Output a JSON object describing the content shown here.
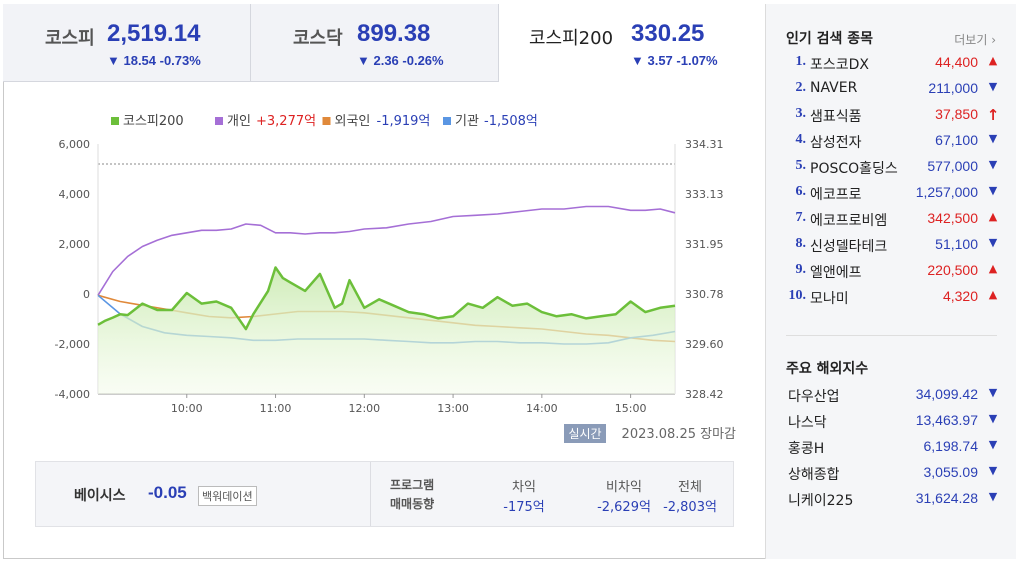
{
  "tabs": [
    {
      "name": "코스피",
      "value": "2,519.14",
      "change": "▼ 18.54 -0.73%"
    },
    {
      "name": "코스닥",
      "value": "899.38",
      "change": "▼ 2.36 -0.26%"
    },
    {
      "name": "코스피200",
      "value": "330.25",
      "change": "▼ 3.57 -1.07%"
    }
  ],
  "legend": [
    {
      "label": "코스피200",
      "amount": "",
      "color": "#6cbf3a"
    },
    {
      "label": "개인",
      "amount": "+3,277억",
      "color": "#a56fd6"
    },
    {
      "label": "외국인",
      "amount": "-1,919억",
      "color": "#e0893a"
    },
    {
      "label": "기관",
      "amount": "-1,508억",
      "color": "#5a96e3"
    }
  ],
  "realtime_badge": "실시간",
  "date_label": "2023.08.25 장마감",
  "lower": {
    "basis_label": "베이시스",
    "basis_value": "-0.05",
    "unit_badge": "백워데이션",
    "program_label_1": "프로그램",
    "program_label_2": "매매동향",
    "cols": [
      {
        "head": "차익",
        "value": "-175억"
      },
      {
        "head": "비차익",
        "value": "-2,629억"
      },
      {
        "head": "전체",
        "value": "-2,803억"
      }
    ]
  },
  "popular": {
    "title": "인기 검색 종목",
    "more": "더보기",
    "items": [
      {
        "rank": "1.",
        "name": "포스코DX",
        "price": "44,400",
        "dir": "up"
      },
      {
        "rank": "2.",
        "name": "NAVER",
        "price": "211,000",
        "dir": "down"
      },
      {
        "rank": "3.",
        "name": "샘표식품",
        "price": "37,850",
        "dir": "uplimit"
      },
      {
        "rank": "4.",
        "name": "삼성전자",
        "price": "67,100",
        "dir": "down"
      },
      {
        "rank": "5.",
        "name": "POSCO홀딩스",
        "price": "577,000",
        "dir": "down"
      },
      {
        "rank": "6.",
        "name": "에코프로",
        "price": "1,257,000",
        "dir": "down"
      },
      {
        "rank": "7.",
        "name": "에코프로비엠",
        "price": "342,500",
        "dir": "up"
      },
      {
        "rank": "8.",
        "name": "신성델타테크",
        "price": "51,100",
        "dir": "down"
      },
      {
        "rank": "9.",
        "name": "엘앤에프",
        "price": "220,500",
        "dir": "up"
      },
      {
        "rank": "10.",
        "name": "모나미",
        "price": "4,320",
        "dir": "up"
      }
    ]
  },
  "world": {
    "title": "주요 해외지수",
    "items": [
      {
        "name": "다우산업",
        "price": "34,099.42"
      },
      {
        "name": "나스닥",
        "price": "13,463.97"
      },
      {
        "name": "홍콩H",
        "price": "6,198.74"
      },
      {
        "name": "상해종합",
        "price": "3,055.09"
      },
      {
        "name": "니케이225",
        "price": "31,624.28"
      }
    ]
  },
  "chart_data": {
    "type": "line",
    "left_ticks": [
      "6,000",
      "4,000",
      "2,000",
      "0",
      "-2,000",
      "-4,000"
    ],
    "right_ticks": [
      "334.31",
      "333.13",
      "331.95",
      "330.78",
      "329.60",
      "328.42"
    ],
    "x_ticks": [
      "10:00",
      "11:00",
      "12:00",
      "13:00",
      "14:00",
      "15:00"
    ],
    "ylim_left": [
      -4000,
      6000
    ],
    "ylim_right": [
      328.42,
      334.31
    ],
    "xlim": [
      "09:00",
      "15:30"
    ],
    "reference_line": 5200,
    "series": [
      {
        "name": "개인",
        "color": "#a56fd6",
        "x": [
          "09:00",
          "09:10",
          "09:20",
          "09:30",
          "09:40",
          "09:50",
          "10:00",
          "10:10",
          "10:20",
          "10:30",
          "10:40",
          "10:50",
          "11:00",
          "11:10",
          "11:20",
          "11:30",
          "11:40",
          "11:50",
          "12:00",
          "12:15",
          "12:30",
          "12:45",
          "13:00",
          "13:15",
          "13:30",
          "13:45",
          "14:00",
          "14:15",
          "14:30",
          "14:45",
          "15:00",
          "15:10",
          "15:20",
          "15:30"
        ],
        "values": [
          -50,
          900,
          1500,
          1900,
          2150,
          2350,
          2450,
          2550,
          2550,
          2600,
          2800,
          2750,
          2450,
          2450,
          2400,
          2450,
          2450,
          2500,
          2600,
          2650,
          2800,
          2900,
          3100,
          3150,
          3200,
          3300,
          3400,
          3400,
          3500,
          3500,
          3350,
          3350,
          3400,
          3250
        ]
      },
      {
        "name": "외국인",
        "color": "#e0893a",
        "x": [
          "09:00",
          "09:15",
          "09:30",
          "09:45",
          "10:00",
          "10:15",
          "10:30",
          "10:45",
          "11:00",
          "11:15",
          "11:30",
          "11:45",
          "12:00",
          "12:15",
          "12:30",
          "12:45",
          "13:00",
          "13:15",
          "13:30",
          "13:45",
          "14:00",
          "14:15",
          "14:30",
          "14:45",
          "15:00",
          "15:15",
          "15:30"
        ],
        "values": [
          -50,
          -300,
          -450,
          -600,
          -750,
          -900,
          -950,
          -900,
          -800,
          -700,
          -700,
          -700,
          -750,
          -850,
          -950,
          -1050,
          -1150,
          -1250,
          -1300,
          -1350,
          -1400,
          -1500,
          -1600,
          -1650,
          -1750,
          -1850,
          -1900
        ]
      },
      {
        "name": "기관",
        "color": "#5a96e3",
        "x": [
          "09:00",
          "09:15",
          "09:30",
          "09:45",
          "10:00",
          "10:15",
          "10:30",
          "10:45",
          "11:00",
          "11:15",
          "11:30",
          "11:45",
          "12:00",
          "12:15",
          "12:30",
          "12:45",
          "13:00",
          "13:15",
          "13:30",
          "13:45",
          "14:00",
          "14:15",
          "14:30",
          "14:45",
          "15:00",
          "15:15",
          "15:30"
        ],
        "values": [
          -50,
          -800,
          -1300,
          -1550,
          -1650,
          -1700,
          -1750,
          -1850,
          -1850,
          -1800,
          -1800,
          -1800,
          -1800,
          -1850,
          -1900,
          -1950,
          -1950,
          -1900,
          -1900,
          -1950,
          -1950,
          -2000,
          -2000,
          -1950,
          -1750,
          -1650,
          -1500
        ]
      },
      {
        "name": "코스피200",
        "color": "#6cbf3a",
        "x": [
          "09:00",
          "09:05",
          "09:10",
          "09:15",
          "09:20",
          "09:30",
          "09:40",
          "09:50",
          "10:00",
          "10:10",
          "10:20",
          "10:30",
          "10:40",
          "10:45",
          "10:55",
          "11:00",
          "11:05",
          "11:10",
          "11:20",
          "11:30",
          "11:40",
          "11:45",
          "11:50",
          "12:00",
          "12:10",
          "12:20",
          "12:30",
          "12:40",
          "12:50",
          "13:00",
          "13:10",
          "13:20",
          "13:30",
          "13:40",
          "13:50",
          "14:00",
          "14:10",
          "14:20",
          "14:30",
          "14:40",
          "14:50",
          "15:00",
          "15:10",
          "15:20",
          "15:30"
        ],
        "values": [
          330.05,
          330.15,
          330.22,
          330.3,
          330.28,
          330.55,
          330.4,
          330.4,
          330.8,
          330.55,
          330.6,
          330.45,
          329.95,
          330.3,
          330.85,
          331.4,
          331.15,
          331.05,
          330.85,
          331.25,
          330.45,
          330.55,
          331.1,
          330.45,
          330.65,
          330.5,
          330.35,
          330.3,
          330.2,
          330.25,
          330.55,
          330.45,
          330.7,
          330.5,
          330.55,
          330.35,
          330.25,
          330.3,
          330.2,
          330.25,
          330.3,
          330.6,
          330.35,
          330.45,
          330.5
        ]
      }
    ]
  }
}
